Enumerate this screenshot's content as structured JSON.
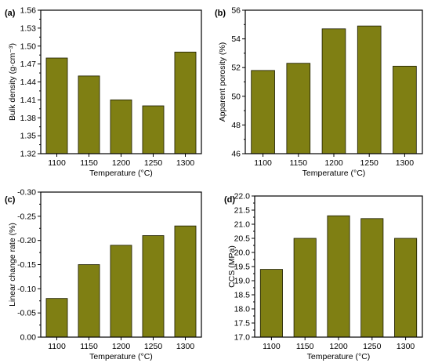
{
  "colors": {
    "bar_fill": "#7f7f13",
    "bar_stroke": "#1a1a00",
    "axis": "#000000"
  },
  "chart_data": [
    {
      "panel": "(a)",
      "type": "bar",
      "categories": [
        "1100",
        "1150",
        "1200",
        "1250",
        "1300"
      ],
      "values": [
        1.48,
        1.45,
        1.41,
        1.4,
        1.49
      ],
      "xlabel": "Temperature (°C)",
      "ylabel": "Bulk density (g·cm⁻³)",
      "ylim": [
        1.32,
        1.56
      ],
      "reversed": false,
      "yticks": [
        "1.32",
        "1.35",
        "1.38",
        "1.41",
        "1.44",
        "1.47",
        "1.50",
        "1.53",
        "1.56"
      ]
    },
    {
      "panel": "(b)",
      "type": "bar",
      "categories": [
        "1100",
        "1150",
        "1200",
        "1250",
        "1300"
      ],
      "values": [
        51.8,
        52.3,
        54.7,
        54.9,
        52.1
      ],
      "xlabel": "Temperature (°C)",
      "ylabel": "Apparent porosity (%)",
      "ylim": [
        46,
        56
      ],
      "reversed": false,
      "yticks": [
        "46",
        "48",
        "50",
        "52",
        "54",
        "56"
      ]
    },
    {
      "panel": "(c)",
      "type": "bar",
      "categories": [
        "1100",
        "1150",
        "1200",
        "1250",
        "1300"
      ],
      "values": [
        -0.08,
        -0.15,
        -0.19,
        -0.21,
        -0.23
      ],
      "xlabel": "Temperature (°C)",
      "ylabel": "Linear change rate (%)",
      "ylim": [
        0.0,
        -0.3
      ],
      "reversed": true,
      "yticks": [
        "0.00",
        "-0.05",
        "-0.10",
        "-0.15",
        "-0.20",
        "-0.25",
        "-0.30"
      ]
    },
    {
      "panel": "(d)",
      "type": "bar",
      "categories": [
        "1100",
        "1150",
        "1200",
        "1250",
        "1300"
      ],
      "values": [
        19.4,
        20.5,
        21.3,
        21.2,
        20.5
      ],
      "xlabel": "Temperature (°C)",
      "ylabel": "CCS (MPa)",
      "ylim": [
        17.0,
        22.0
      ],
      "reversed": false,
      "yticks": [
        "17.0",
        "17.5",
        "18.0",
        "18.5",
        "19.0",
        "19.5",
        "20.0",
        "20.5",
        "21.0",
        "21.5",
        "22.0"
      ]
    }
  ]
}
